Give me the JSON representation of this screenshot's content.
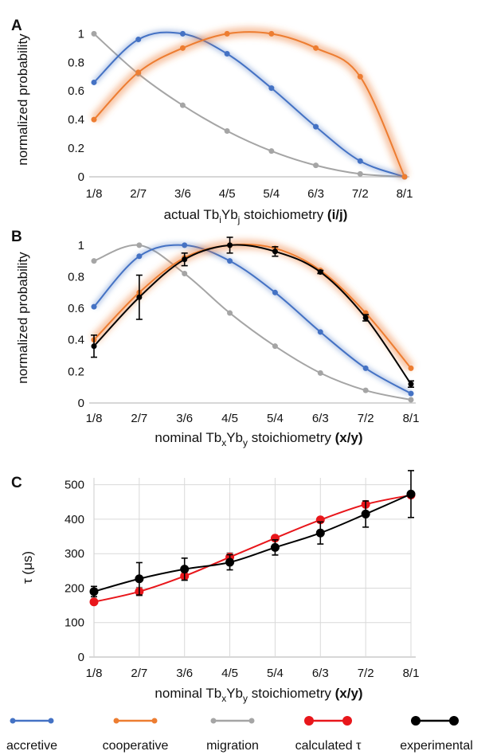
{
  "colors": {
    "accretive": "#4472c4",
    "cooperative": "#ed7d31",
    "migration": "#a5a5a5",
    "calculated": "#e8161b",
    "experimental": "#000000",
    "axis": "#bfbfbf",
    "grid": "#d9d9d9"
  },
  "legend": [
    {
      "key": "accretive",
      "label": "accretive",
      "icon": "blue-line-marker-icon"
    },
    {
      "key": "cooperative",
      "label": "cooperative",
      "icon": "orange-line-marker-icon"
    },
    {
      "key": "migration",
      "label": "migration",
      "icon": "gray-line-marker-icon"
    },
    {
      "key": "calculated",
      "label": "calculated τ",
      "icon": "red-line-marker-icon"
    },
    {
      "key": "experimental",
      "label": "experimental",
      "icon": "black-line-marker-icon"
    }
  ],
  "chart_data": [
    {
      "panel": "A",
      "type": "line",
      "ylabel": "normalized probability",
      "xlabel": {
        "prefix": "actual Tb",
        "sub1": "i",
        "mid": "Yb",
        "sub2": "j",
        "rest": " stoichiometry ",
        "bold": "(i/j)"
      },
      "categories": [
        "1/8",
        "2/7",
        "3/6",
        "4/5",
        "5/4",
        "6/3",
        "7/2",
        "8/1"
      ],
      "category_colors": [
        "#e8161b",
        "#ed7d31",
        "#70ad47",
        "#00a050",
        "#00b0f0",
        "#2f5597",
        "#7030a0",
        "#000000"
      ],
      "yticks": [
        "0",
        "0.2",
        "0.4",
        "0.6",
        "0.8",
        "1"
      ],
      "ylim": [
        0,
        1.08
      ],
      "series": [
        {
          "key": "migration",
          "values": [
            1.0,
            0.72,
            0.5,
            0.32,
            0.18,
            0.08,
            0.02,
            0.0
          ]
        },
        {
          "key": "accretive",
          "values": [
            0.66,
            0.96,
            1.0,
            0.86,
            0.62,
            0.35,
            0.11,
            0.0
          ]
        },
        {
          "key": "cooperative",
          "values": [
            0.4,
            0.73,
            0.9,
            1.0,
            1.0,
            0.9,
            0.7,
            0.0
          ]
        }
      ]
    },
    {
      "panel": "B",
      "type": "line",
      "ylabel": "normalized probability",
      "xlabel": {
        "prefix": "nominal Tb",
        "sub1": "x",
        "mid": "Yb",
        "sub2": "y",
        "rest": " stoichiometry ",
        "bold": "(x/y)"
      },
      "categories": [
        "1/8",
        "2/7",
        "3/6",
        "4/5",
        "5/4",
        "6/3",
        "7/2",
        "8/1"
      ],
      "yticks": [
        "0",
        "0.2",
        "0.4",
        "0.6",
        "0.8",
        "1"
      ],
      "ylim": [
        0,
        1.08
      ],
      "series": [
        {
          "key": "migration",
          "values": [
            0.9,
            1.0,
            0.82,
            0.57,
            0.36,
            0.19,
            0.08,
            0.02
          ]
        },
        {
          "key": "accretive",
          "values": [
            0.61,
            0.93,
            1.0,
            0.9,
            0.7,
            0.45,
            0.22,
            0.06
          ]
        },
        {
          "key": "cooperative",
          "values": [
            0.4,
            0.7,
            0.92,
            1.0,
            0.98,
            0.84,
            0.57,
            0.22
          ]
        },
        {
          "key": "experimental",
          "values": [
            0.36,
            0.67,
            0.91,
            1.0,
            0.96,
            0.83,
            0.54,
            0.12
          ],
          "errors": [
            0.07,
            0.14,
            0.04,
            0.05,
            0.03,
            0.01,
            0.02,
            0.02
          ]
        }
      ]
    },
    {
      "panel": "C",
      "type": "line",
      "ylabel": "τ (μs)",
      "xlabel": {
        "prefix": "nominal Tb",
        "sub1": "x",
        "mid": "Yb",
        "sub2": "y",
        "rest": " stoichiometry ",
        "bold": "(x/y)"
      },
      "categories": [
        "1/8",
        "2/7",
        "3/6",
        "4/5",
        "5/4",
        "6/3",
        "7/2",
        "8/1"
      ],
      "yticks": [
        "0",
        "100",
        "200",
        "300",
        "400",
        "500"
      ],
      "ylim": [
        0,
        520
      ],
      "series": [
        {
          "key": "calculated",
          "values": [
            160,
            190,
            235,
            290,
            345,
            398,
            443,
            470
          ],
          "errors": [
            0,
            12,
            12,
            12,
            0,
            0,
            0,
            0
          ]
        },
        {
          "key": "experimental",
          "values": [
            190,
            227,
            255,
            275,
            318,
            360,
            415,
            473
          ],
          "errors": [
            15,
            47,
            32,
            22,
            22,
            32,
            38,
            68
          ]
        }
      ]
    }
  ]
}
